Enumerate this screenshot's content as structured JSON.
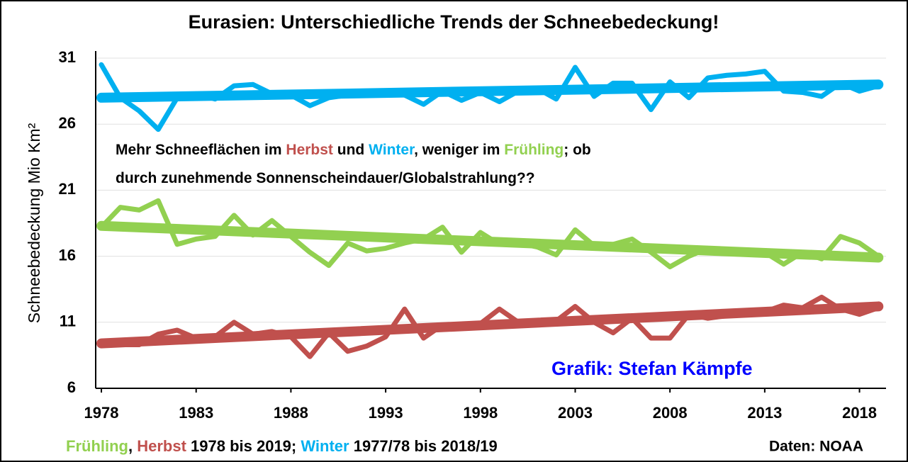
{
  "chart_data": {
    "type": "line",
    "title": "Eurasien: Unterschiedliche Trends der Schneebedeckung!",
    "y_label": "Schneebedeckung Mio Km²",
    "annotation": [
      [
        {
          "text": "Mehr Schneeflächen im ",
          "color": "#000000"
        },
        {
          "text": "Herbst",
          "color": "#c0504d"
        },
        {
          "text": " und ",
          "color": "#000000"
        },
        {
          "text": "Winter",
          "color": "#00b0f0"
        },
        {
          "text": ", weniger im ",
          "color": "#000000"
        },
        {
          "text": "Frühling",
          "color": "#92d050"
        },
        {
          "text": "; ob",
          "color": "#000000"
        }
      ],
      [
        {
          "text": "durch zunehmende Sonnenscheindauer/Globalstrahlung??",
          "color": "#000000"
        }
      ]
    ],
    "credit": {
      "text": "Grafik: Stefan Kämpfe",
      "color": "#0000ff"
    },
    "footer": [
      {
        "text": "Frühling",
        "color": "#92d050"
      },
      {
        "text": ", ",
        "color": "#000000"
      },
      {
        "text": "Herbst",
        "color": "#c0504d"
      },
      {
        "text": " 1978 bis 2019; ",
        "color": "#000000"
      },
      {
        "text": "Winter",
        "color": "#00b0f0"
      },
      {
        "text": " 1977/78 bis 2018/19",
        "color": "#000000"
      }
    ],
    "source": "Daten: NOAA",
    "x": [
      1978,
      1979,
      1980,
      1981,
      1982,
      1983,
      1984,
      1985,
      1986,
      1987,
      1988,
      1989,
      1990,
      1991,
      1992,
      1993,
      1994,
      1995,
      1996,
      1997,
      1998,
      1999,
      2000,
      2001,
      2002,
      2003,
      2004,
      2005,
      2006,
      2007,
      2008,
      2009,
      2010,
      2011,
      2012,
      2013,
      2014,
      2015,
      2016,
      2017,
      2018,
      2019
    ],
    "trend_x": [
      1978,
      2019
    ],
    "series": [
      {
        "color": "#00b0f0",
        "values": [
          30.5,
          28,
          27,
          25.6,
          28,
          28.3,
          27.9,
          28.9,
          29,
          28.3,
          28.2,
          27.4,
          28,
          28.2,
          28.3,
          28.3,
          28.2,
          27.5,
          28.5,
          27.8,
          28.4,
          27.7,
          28.5,
          28.7,
          27.9,
          30.3,
          28.1,
          29.1,
          29.1,
          27.1,
          29.2,
          28,
          29.5,
          29.7,
          29.8,
          30,
          28.5,
          28.4,
          28.1,
          29.1,
          28.5,
          28.9
        ],
        "trend": [
          28,
          29
        ]
      },
      {
        "color": "#92d050",
        "values": [
          18.2,
          19.7,
          19.5,
          20.2,
          16.9,
          17.3,
          17.5,
          19.1,
          17.6,
          18.7,
          17.5,
          16.3,
          15.3,
          17,
          16.4,
          16.6,
          17,
          17.3,
          18.2,
          16.3,
          17.8,
          16.9,
          17,
          16.7,
          16.1,
          18,
          16.8,
          16.9,
          17.3,
          16.3,
          15.2,
          16,
          16.6,
          16.4,
          16.3,
          16.3,
          15.4,
          16.3,
          15.8,
          17.5,
          17,
          16
        ],
        "trend": [
          18.3,
          15.9
        ]
      },
      {
        "color": "#c0504d",
        "values": [
          9.5,
          9.3,
          9.3,
          10.1,
          10.4,
          9.8,
          9.9,
          11,
          10.1,
          10.3,
          9.9,
          8.4,
          10.2,
          8.8,
          9.2,
          9.9,
          12,
          9.8,
          10.8,
          10.8,
          10.9,
          12,
          11,
          11,
          11.1,
          12.2,
          11,
          10.2,
          11.3,
          9.8,
          9.8,
          11.6,
          11.3,
          11.5,
          11.6,
          11.8,
          12.3,
          12.1,
          12.9,
          12,
          11.6,
          12.1
        ],
        "trend": [
          9.4,
          12.2
        ]
      }
    ],
    "xlim": [
      1977.7,
      2019.4
    ],
    "xticks": [
      1978,
      1983,
      1988,
      1993,
      1998,
      2003,
      2008,
      2013,
      2018
    ],
    "ylim": [
      6,
      31
    ],
    "yticks": [
      6,
      11,
      16,
      21,
      26,
      31
    ],
    "grid": true
  }
}
